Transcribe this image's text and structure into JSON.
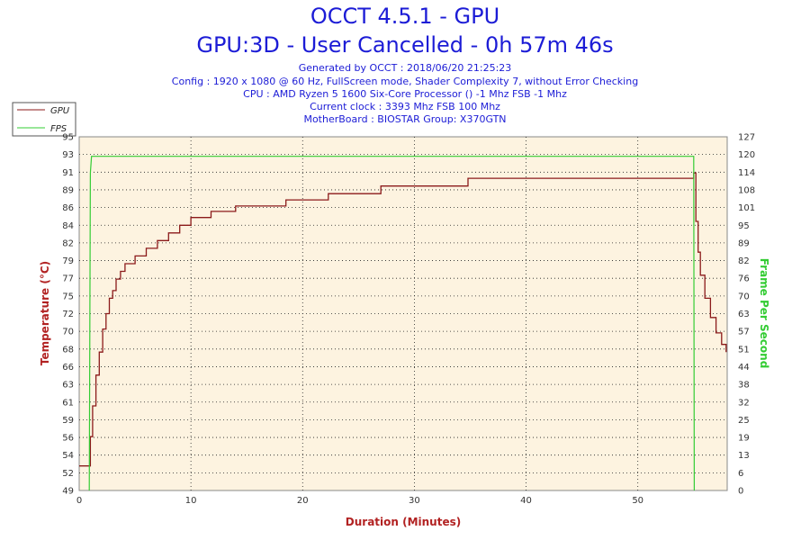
{
  "header": {
    "title": "OCCT 4.5.1 - GPU",
    "subtitle": "GPU:3D - User Cancelled - 0h 57m 46s",
    "info": [
      "Generated by OCCT : 2018/06/20 21:25:23",
      "Config : 1920 x 1080 @ 60 Hz, FullScreen mode, Shader Complexity 7, without Error Checking",
      "CPU : AMD Ryzen 5 1600 Six-Core Processor () -1 Mhz FSB -1 Mhz",
      "Current clock : 3393 Mhz FSB 100 Mhz",
      "MotherBoard : BIOSTAR Group: X370GTN"
    ]
  },
  "colors": {
    "gpu": "#8b1a1a",
    "fps": "#33cc33",
    "plot_bg": "#fdf3e0",
    "text": "#1c1cd6"
  },
  "chart_data": {
    "type": "line",
    "xlabel": "Duration (Minutes)",
    "ylabel": "Temperature (°C)",
    "y2label": "Frame Per Second",
    "xlim": [
      0,
      58
    ],
    "ylim": [
      49,
      95
    ],
    "y2lim": [
      0,
      127
    ],
    "xticks": [
      0,
      10,
      20,
      30,
      40,
      50
    ],
    "yticks": [
      "49",
      "52",
      "54",
      "56",
      "59",
      "61",
      "63",
      "66",
      "68",
      "70",
      "72",
      "75",
      "77",
      "79",
      "82",
      "84",
      "86",
      "89",
      "91",
      "93",
      "95"
    ],
    "y2ticks": [
      "0",
      "6",
      "13",
      "19",
      "25",
      "32",
      "38",
      "44",
      "51",
      "57",
      "63",
      "70",
      "76",
      "82",
      "89",
      "95",
      "101",
      "108",
      "114",
      "120",
      "127"
    ],
    "grid": true,
    "legend": "top-left",
    "series": [
      {
        "name": "GPU",
        "axis": "left",
        "x": [
          0,
          0.9,
          1.0,
          1.2,
          1.5,
          1.8,
          2.1,
          2.4,
          2.7,
          3.0,
          3.3,
          3.7,
          4.1,
          5.0,
          6.0,
          7.0,
          8.0,
          9.0,
          10.0,
          11.8,
          14.0,
          18.5,
          22.3,
          27.0,
          34.8,
          55.0,
          55.2,
          55.4,
          55.6,
          56.0,
          56.5,
          57.0,
          57.5,
          57.9
        ],
        "y": [
          52.2,
          52.2,
          56,
          60,
          64,
          67,
          70,
          72,
          74,
          75,
          76.5,
          77.5,
          78.5,
          79.5,
          80.5,
          81.5,
          82.5,
          83.5,
          84.5,
          85.3,
          86,
          86.8,
          87.6,
          88.6,
          89.6,
          90.3,
          84,
          80,
          77,
          74,
          71.5,
          69.5,
          68,
          67
        ]
      },
      {
        "name": "FPS",
        "axis": "right",
        "x": [
          0.9,
          1.0,
          1.1,
          55.0,
          55.05
        ],
        "y": [
          0,
          114,
          120,
          120,
          0
        ]
      }
    ]
  }
}
